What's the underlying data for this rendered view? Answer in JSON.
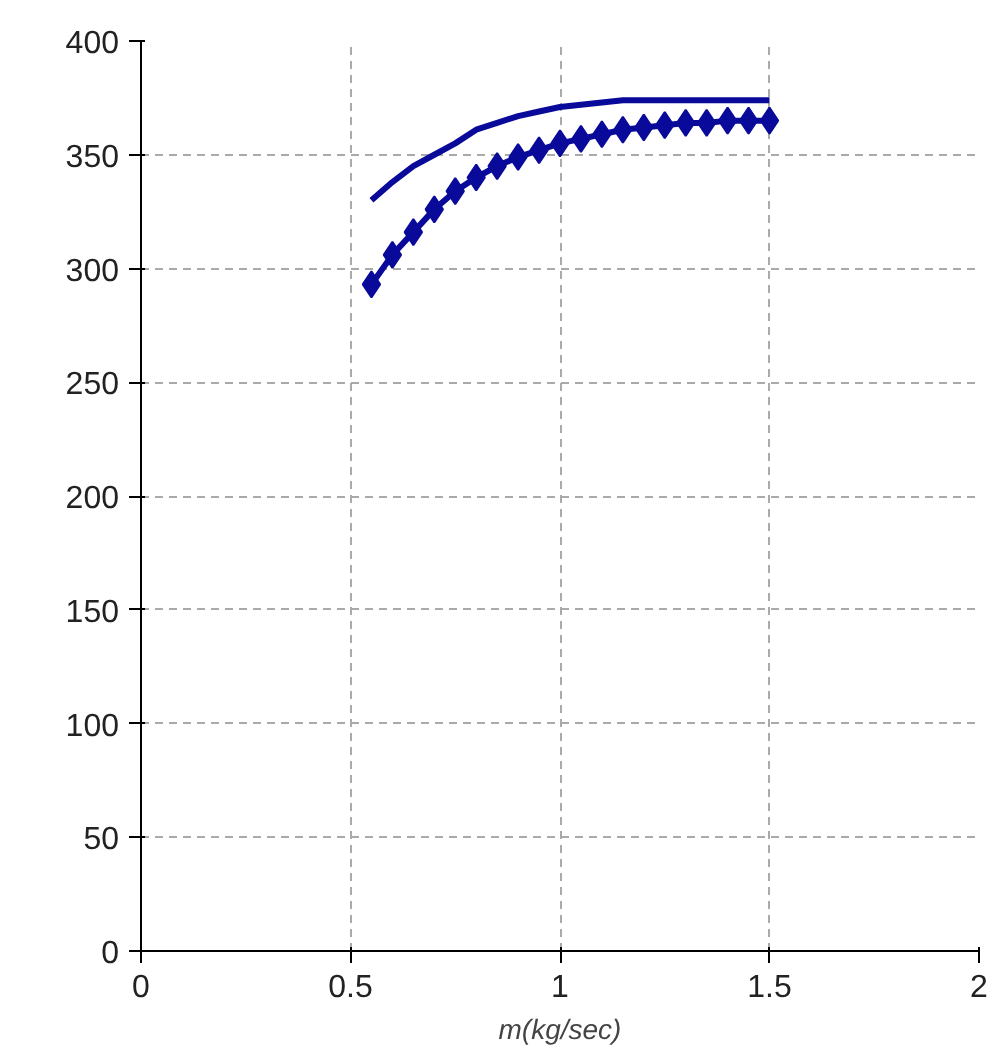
{
  "chart_data": {
    "type": "line",
    "xlabel": "m(kg/sec)",
    "x": [
      0.55,
      0.6,
      0.65,
      0.7,
      0.75,
      0.8,
      0.85,
      0.9,
      0.95,
      1.0,
      1.05,
      1.1,
      1.15,
      1.2,
      1.25,
      1.3,
      1.35,
      1.4,
      1.45,
      1.5
    ],
    "series": [
      {
        "color": "#0a0a9a",
        "marker": "none",
        "values": [
          330,
          338,
          345,
          350,
          355,
          361,
          364,
          367,
          369,
          371,
          372,
          373,
          374,
          374,
          374,
          374,
          374,
          374,
          374,
          374
        ]
      },
      {
        "color": "#0a0a9a",
        "marker": "diamond",
        "values": [
          293,
          306,
          316,
          326,
          334,
          340,
          345,
          349,
          352,
          355,
          357,
          359,
          361,
          362,
          363,
          364,
          364,
          365,
          365,
          365
        ]
      }
    ],
    "xlim": [
      0,
      2
    ],
    "xticks": [
      0,
      0.5,
      1,
      1.5,
      2
    ],
    "ylim": [
      0,
      400
    ],
    "yticks": [
      0,
      50,
      100,
      150,
      200,
      250,
      300,
      350,
      400
    ],
    "grid": true,
    "line_style": "solid"
  }
}
